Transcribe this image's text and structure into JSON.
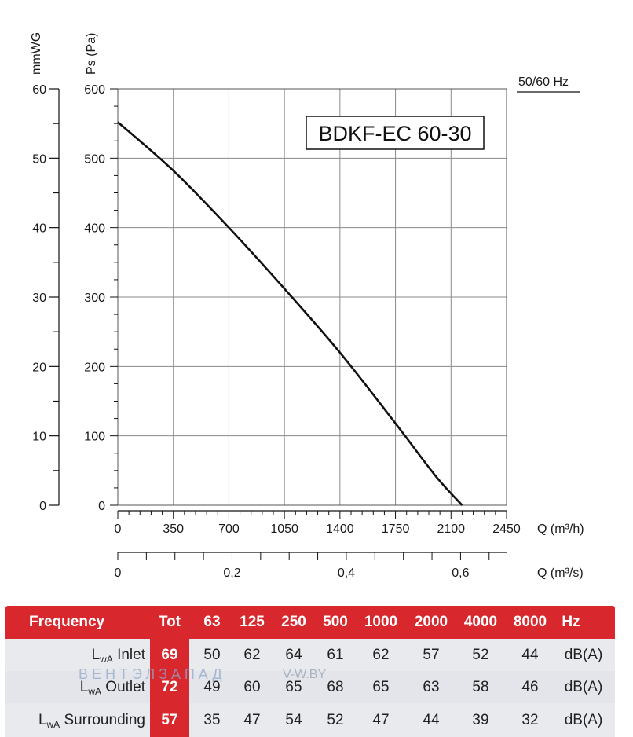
{
  "chart_data": {
    "type": "line",
    "title": "BDKF-EC 60-30",
    "frequency_label": "50/60 Hz",
    "y_left_label": "mmWG",
    "y_right_label": "Ps (Pa)",
    "x_label": "Q (m³/h)",
    "x2_label": "Q (m³/s)",
    "xlim": [
      0,
      2450
    ],
    "ylim": [
      0,
      600
    ],
    "y_mm_ticks": [
      "0",
      "10",
      "20",
      "30",
      "40",
      "50",
      "60"
    ],
    "y_pa_ticks": [
      "0",
      "100",
      "200",
      "300",
      "400",
      "500",
      "600"
    ],
    "x_ticks": [
      "0",
      "350",
      "700",
      "1050",
      "1400",
      "1750",
      "2100",
      "2450"
    ],
    "x2_ticks": [
      "0",
      "0,2",
      "0,4",
      "0,6"
    ],
    "grid": true,
    "series": [
      {
        "x": [
          0,
          350,
          700,
          1050,
          1400,
          1750,
          2000,
          2170
        ],
        "y": [
          552,
          482,
          400,
          312,
          220,
          118,
          43,
          0
        ]
      }
    ]
  },
  "table": {
    "header": {
      "label": "Frequency",
      "tot": "Tot",
      "bands": [
        "63",
        "125",
        "250",
        "500",
        "1000",
        "2000",
        "4000",
        "8000"
      ],
      "unit": "Hz"
    },
    "rows": [
      {
        "prefix": "L",
        "sub": "wA",
        "name": "Inlet",
        "tot": "69",
        "values": [
          "50",
          "62",
          "64",
          "61",
          "62",
          "57",
          "52",
          "44"
        ],
        "unit": "dB(A)"
      },
      {
        "prefix": "L",
        "sub": "wA",
        "name": "Outlet",
        "tot": "72",
        "values": [
          "49",
          "60",
          "65",
          "68",
          "65",
          "63",
          "58",
          "46"
        ],
        "unit": "dB(A)"
      },
      {
        "prefix": "L",
        "sub": "wA",
        "name": "Surrounding",
        "tot": "57",
        "values": [
          "35",
          "47",
          "54",
          "52",
          "47",
          "44",
          "39",
          "32"
        ],
        "unit": "dB(A)"
      }
    ]
  },
  "watermark": {
    "brand": "ВЕНТЭЛЗАПАД",
    "site": "V-W.BY"
  }
}
